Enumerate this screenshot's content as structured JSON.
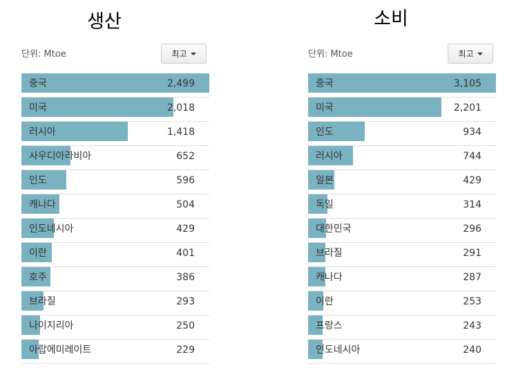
{
  "chart_data": [
    {
      "type": "bar",
      "title": "생산",
      "unit": "단위: Mtoe",
      "sort_label": "최고",
      "categories": [
        "중국",
        "미국",
        "러시아",
        "사우디아라비아",
        "인도",
        "캐나다",
        "인도네시아",
        "이란",
        "호주",
        "브라질",
        "나이지리아",
        "아랍에미레이트"
      ],
      "values": [
        2499,
        2018,
        1418,
        652,
        596,
        504,
        429,
        401,
        386,
        293,
        250,
        229
      ],
      "value_labels": [
        "2,499",
        "2,018",
        "1,418",
        "652",
        "596",
        "504",
        "429",
        "401",
        "386",
        "293",
        "250",
        "229"
      ],
      "xlim": [
        0,
        2499
      ],
      "color": "#7ab2c2"
    },
    {
      "type": "bar",
      "title": "소비",
      "unit": "단위: Mtoe",
      "sort_label": "최고",
      "categories": [
        "중국",
        "미국",
        "인도",
        "러시아",
        "일본",
        "독일",
        "대한민국",
        "브라질",
        "캐나다",
        "이란",
        "프랑스",
        "인도네시아"
      ],
      "values": [
        3105,
        2201,
        934,
        744,
        429,
        314,
        296,
        291,
        287,
        253,
        243,
        240
      ],
      "value_labels": [
        "3,105",
        "2,201",
        "934",
        "744",
        "429",
        "314",
        "296",
        "291",
        "287",
        "253",
        "243",
        "240"
      ],
      "xlim": [
        0,
        3105
      ],
      "color": "#7ab2c2"
    }
  ]
}
